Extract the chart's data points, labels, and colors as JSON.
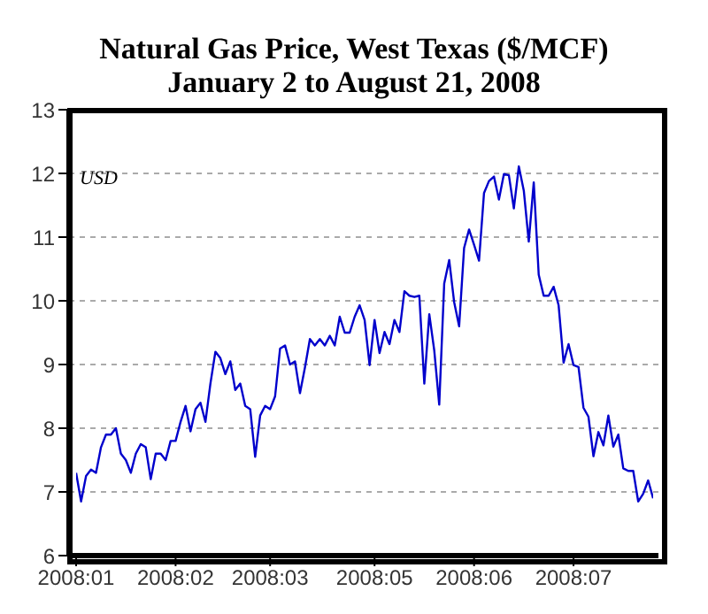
{
  "chart_data": {
    "type": "line",
    "title": "Natural Gas Price, West Texas ($/MCF)",
    "subtitle": "January 2 to August 21, 2008",
    "ylabel": "USD",
    "categories": [
      "2008:01",
      null,
      null,
      null,
      null,
      null,
      null,
      null,
      null,
      null,
      null,
      null,
      null,
      null,
      null,
      null,
      null,
      null,
      null,
      null,
      "2008:02",
      null,
      null,
      null,
      null,
      null,
      null,
      null,
      null,
      null,
      null,
      null,
      null,
      null,
      null,
      null,
      null,
      null,
      null,
      "2008:03",
      null,
      null,
      null,
      null,
      null,
      null,
      null,
      null,
      null,
      null,
      null,
      null,
      null,
      null,
      null,
      null,
      null,
      null,
      null,
      null,
      "2008:05",
      null,
      null,
      null,
      null,
      null,
      null,
      null,
      null,
      null,
      null,
      null,
      null,
      null,
      null,
      null,
      null,
      null,
      null,
      null,
      "2008:06",
      null,
      null,
      null,
      null,
      null,
      null,
      null,
      null,
      null,
      null,
      null,
      null,
      null,
      null,
      null,
      null,
      null,
      null,
      null,
      "2008:07",
      null,
      null,
      null,
      null,
      null,
      null,
      null,
      null,
      null,
      null,
      null,
      null,
      null,
      null,
      null,
      null
    ],
    "values": [
      7.3,
      6.85,
      7.25,
      7.35,
      7.3,
      7.7,
      7.9,
      7.9,
      8.0,
      7.6,
      7.5,
      7.3,
      7.6,
      7.75,
      7.7,
      7.2,
      7.6,
      7.6,
      7.5,
      7.8,
      7.8,
      8.1,
      8.35,
      7.95,
      8.3,
      8.4,
      8.1,
      8.7,
      9.2,
      9.1,
      8.85,
      9.05,
      8.6,
      8.7,
      8.35,
      8.3,
      7.55,
      8.2,
      8.35,
      8.3,
      8.5,
      9.25,
      9.3,
      9.0,
      9.05,
      8.55,
      8.95,
      9.4,
      9.3,
      9.4,
      9.3,
      9.45,
      9.3,
      9.75,
      9.5,
      9.5,
      9.75,
      9.93,
      9.7,
      8.99,
      9.7,
      9.18,
      9.51,
      9.32,
      9.7,
      9.51,
      10.15,
      10.08,
      10.06,
      10.08,
      8.7,
      9.79,
      9.22,
      8.37,
      10.27,
      10.64,
      9.98,
      9.6,
      10.83,
      11.12,
      10.88,
      10.63,
      11.69,
      11.88,
      11.95,
      11.59,
      11.99,
      11.97,
      11.45,
      12.11,
      11.73,
      10.93,
      11.86,
      10.41,
      10.08,
      10.08,
      10.22,
      9.93,
      9.03,
      9.32,
      8.99,
      8.96,
      8.32,
      8.18,
      7.56,
      7.94,
      7.73,
      8.2,
      7.71,
      7.9,
      7.37,
      7.33,
      7.33,
      6.85,
      6.97,
      7.18,
      6.9
    ],
    "color": "#0000cc",
    "ylim": [
      6,
      13
    ],
    "yticks": [
      6,
      7,
      8,
      9,
      10,
      11,
      12,
      13
    ],
    "grid": "y",
    "marker": "none",
    "line_style": "solid"
  }
}
